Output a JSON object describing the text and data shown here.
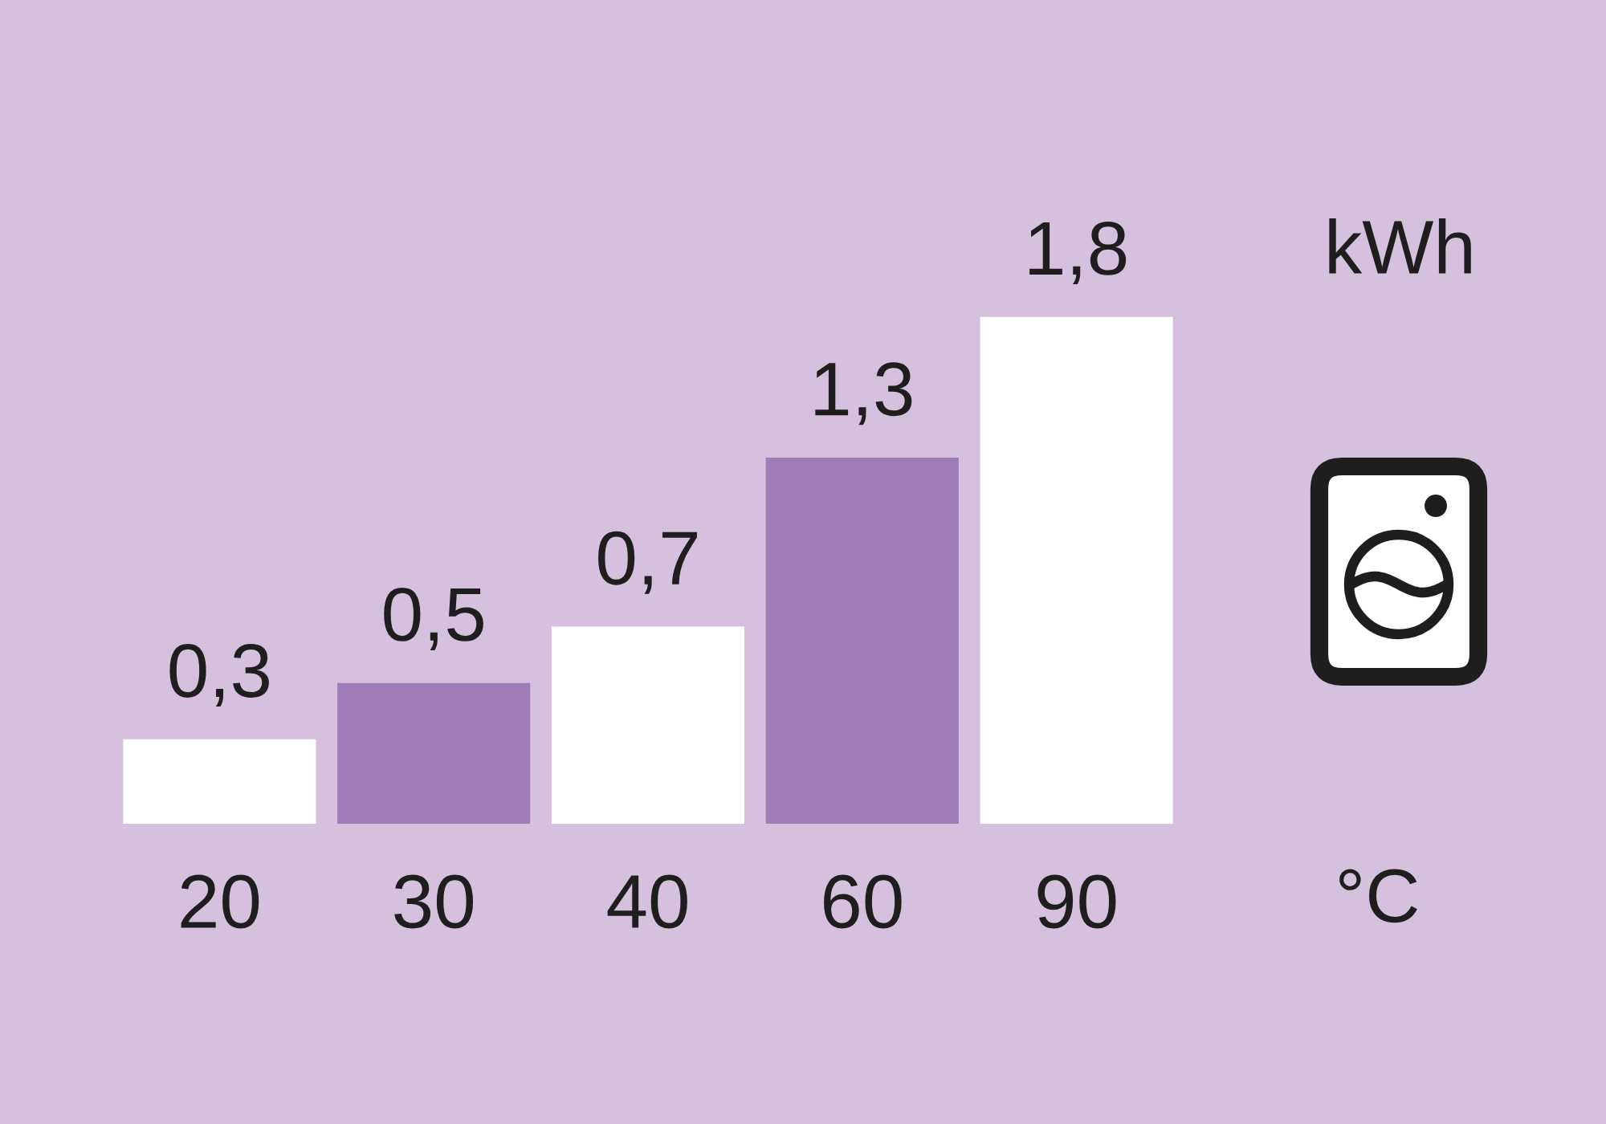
{
  "chart_data": {
    "type": "bar",
    "categories": [
      "20",
      "30",
      "40",
      "60",
      "90"
    ],
    "values": [
      0.3,
      0.5,
      0.7,
      1.3,
      1.8
    ],
    "colors": [
      "#ffffff",
      "#a07bb8",
      "#ffffff",
      "#a07bb8",
      "#ffffff"
    ],
    "value_labels": [
      "0,3",
      "0,5",
      "0,7",
      "1,3",
      "1,8"
    ],
    "xlabel": "°C",
    "ylabel": "kWh",
    "tick_labels": "x"
  }
}
